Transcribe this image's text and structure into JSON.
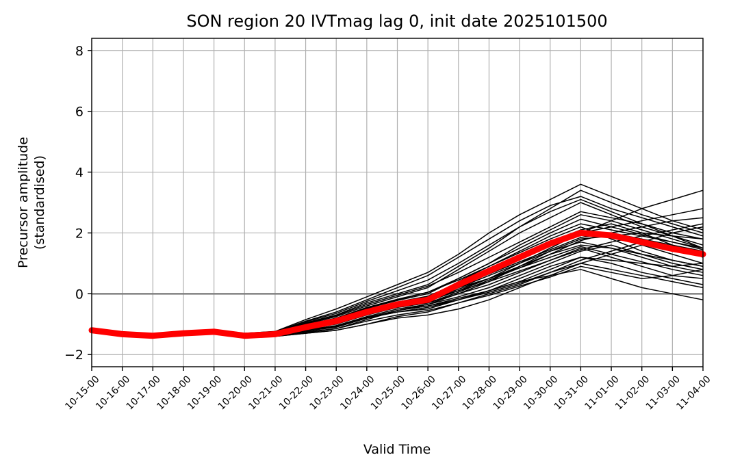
{
  "chart_data": {
    "type": "line",
    "title": "SON region 20 IVTmag lag 0, init date 2025101500",
    "xlabel": "Valid Time",
    "ylabel_lines": [
      "Precursor amplitude",
      "(standardised)"
    ],
    "categories": [
      "10-15-00",
      "10-16-00",
      "10-17-00",
      "10-18-00",
      "10-19-00",
      "10-20-00",
      "10-21-00",
      "10-22-00",
      "10-23-00",
      "10-24-00",
      "10-25-00",
      "10-26-00",
      "10-27-00",
      "10-28-00",
      "10-29-00",
      "10-30-00",
      "10-31-00",
      "11-01-00",
      "11-02-00",
      "11-03-00",
      "11-04-00"
    ],
    "yticks": [
      -2,
      0,
      2,
      4,
      6,
      8
    ],
    "ytick_labels": [
      "−2",
      "0",
      "2",
      "4",
      "6",
      "8"
    ],
    "ylim": [
      -2.4,
      8.4
    ],
    "grid": true,
    "zero_line": 0,
    "colors": {
      "members": "#000000",
      "mean": "#ff0000",
      "grid": "#b0b0b0",
      "zero_line": "#808080"
    },
    "ensemble_mean": [
      -1.2,
      -1.33,
      -1.38,
      -1.3,
      -1.25,
      -1.38,
      -1.33,
      -1.1,
      -0.9,
      -0.6,
      -0.35,
      -0.2,
      0.3,
      0.75,
      1.2,
      1.65,
      2.0,
      1.92,
      1.7,
      1.48,
      1.3
    ],
    "members": [
      [
        -1.2,
        -1.33,
        -1.38,
        -1.3,
        -1.25,
        -1.38,
        -1.33,
        -1.1,
        -0.9,
        -0.6,
        -0.35,
        -0.2,
        0.3,
        0.75,
        1.2,
        1.65,
        2.0,
        1.92,
        1.7,
        1.48,
        1.3
      ],
      [
        -1.15,
        -1.28,
        -1.33,
        -1.25,
        -1.2,
        -1.32,
        -1.28,
        -1.0,
        -0.75,
        -0.4,
        -0.1,
        0.2,
        0.8,
        1.4,
        2.0,
        2.5,
        3.0,
        2.6,
        2.2,
        1.9,
        1.6
      ],
      [
        -1.18,
        -1.3,
        -1.36,
        -1.28,
        -1.23,
        -1.35,
        -1.3,
        -1.05,
        -0.85,
        -0.5,
        -0.3,
        -0.1,
        0.2,
        0.5,
        0.9,
        1.3,
        1.6,
        1.5,
        1.3,
        1.1,
        0.9
      ],
      [
        -1.2,
        -1.34,
        -1.4,
        -1.32,
        -1.27,
        -1.4,
        -1.36,
        -1.2,
        -1.1,
        -0.8,
        -0.6,
        -0.5,
        -0.2,
        0.1,
        0.5,
        0.9,
        1.2,
        1.0,
        0.7,
        0.5,
        0.3
      ],
      [
        -1.17,
        -1.31,
        -1.37,
        -1.29,
        -1.24,
        -1.36,
        -1.31,
        -1.08,
        -0.88,
        -0.55,
        -0.3,
        -0.15,
        0.4,
        0.9,
        1.4,
        1.9,
        2.3,
        2.1,
        1.9,
        1.7,
        1.5
      ],
      [
        -1.2,
        -1.33,
        -1.38,
        -1.3,
        -1.25,
        -1.4,
        -1.4,
        -1.3,
        -1.2,
        -1.0,
        -0.8,
        -0.7,
        -0.5,
        -0.2,
        0.2,
        0.6,
        1.0,
        0.8,
        0.6,
        0.4,
        0.2
      ],
      [
        -1.16,
        -1.3,
        -1.35,
        -1.27,
        -1.22,
        -1.33,
        -1.27,
        -0.95,
        -0.7,
        -0.3,
        0.0,
        0.3,
        0.9,
        1.5,
        2.2,
        2.8,
        3.4,
        3.0,
        2.6,
        2.3,
        2.0
      ],
      [
        -1.2,
        -1.34,
        -1.4,
        -1.32,
        -1.28,
        -1.42,
        -1.38,
        -1.25,
        -1.15,
        -0.85,
        -0.55,
        -0.35,
        0.0,
        0.4,
        0.9,
        1.4,
        1.8,
        1.9,
        2.0,
        1.9,
        1.8
      ],
      [
        -1.18,
        -1.32,
        -1.37,
        -1.3,
        -1.25,
        -1.37,
        -1.32,
        -1.12,
        -0.95,
        -0.65,
        -0.4,
        -0.25,
        0.1,
        0.5,
        1.0,
        1.5,
        2.0,
        2.2,
        2.4,
        2.6,
        2.8
      ],
      [
        -1.2,
        -1.33,
        -1.39,
        -1.31,
        -1.26,
        -1.39,
        -1.35,
        -1.15,
        -1.0,
        -0.7,
        -0.45,
        -0.3,
        0.0,
        0.3,
        0.7,
        1.1,
        1.5,
        1.2,
        0.9,
        0.6,
        0.5
      ],
      [
        -1.15,
        -1.28,
        -1.33,
        -1.24,
        -1.2,
        -1.3,
        -1.25,
        -0.9,
        -0.6,
        -0.2,
        0.2,
        0.6,
        1.2,
        1.8,
        2.4,
        2.9,
        3.2,
        2.8,
        2.5,
        2.2,
        1.9
      ],
      [
        -1.19,
        -1.32,
        -1.38,
        -1.3,
        -1.25,
        -1.38,
        -1.34,
        -1.2,
        -1.05,
        -0.75,
        -0.5,
        -0.35,
        -0.1,
        0.2,
        0.6,
        1.0,
        1.4,
        1.6,
        1.3,
        1.0,
        0.8
      ],
      [
        -1.21,
        -1.35,
        -1.41,
        -1.33,
        -1.28,
        -1.42,
        -1.4,
        -1.3,
        -1.2,
        -1.0,
        -0.75,
        -0.6,
        -0.3,
        0.0,
        0.3,
        0.7,
        1.1,
        1.4,
        1.7,
        2.0,
        2.2
      ],
      [
        -1.17,
        -1.3,
        -1.36,
        -1.28,
        -1.23,
        -1.35,
        -1.3,
        -1.05,
        -0.8,
        -0.45,
        -0.2,
        0.05,
        0.5,
        1.0,
        1.6,
        2.1,
        2.6,
        2.4,
        2.1,
        1.8,
        1.5
      ],
      [
        -1.2,
        -1.33,
        -1.38,
        -1.3,
        -1.25,
        -1.38,
        -1.33,
        -1.1,
        -0.95,
        -0.65,
        -0.4,
        -0.2,
        0.2,
        0.6,
        1.0,
        1.4,
        1.7,
        1.5,
        1.2,
        0.9,
        0.7
      ],
      [
        -1.19,
        -1.33,
        -1.39,
        -1.31,
        -1.26,
        -1.39,
        -1.35,
        -1.18,
        -1.05,
        -0.78,
        -0.55,
        -0.4,
        -0.15,
        0.1,
        0.4,
        0.8,
        1.2,
        1.1,
        1.0,
        0.9,
        1.0
      ],
      [
        -1.14,
        -1.28,
        -1.32,
        -1.24,
        -1.18,
        -1.3,
        -1.24,
        -0.85,
        -0.5,
        -0.1,
        0.3,
        0.7,
        1.3,
        2.0,
        2.6,
        3.1,
        3.6,
        3.2,
        2.8,
        2.4,
        2.1
      ],
      [
        -1.2,
        -1.34,
        -1.4,
        -1.32,
        -1.27,
        -1.41,
        -1.38,
        -1.22,
        -1.1,
        -0.8,
        -0.55,
        -0.4,
        -0.2,
        0.1,
        0.4,
        0.6,
        0.8,
        0.5,
        0.2,
        0.0,
        -0.2
      ],
      [
        -1.18,
        -1.31,
        -1.36,
        -1.28,
        -1.24,
        -1.36,
        -1.31,
        -1.06,
        -0.86,
        -0.52,
        -0.27,
        -0.08,
        0.35,
        0.8,
        1.25,
        1.7,
        2.1,
        2.3,
        2.0,
        1.6,
        1.2
      ],
      [
        -1.2,
        -1.33,
        -1.38,
        -1.3,
        -1.25,
        -1.38,
        -1.33,
        -1.12,
        -0.92,
        -0.62,
        -0.38,
        -0.22,
        0.25,
        0.65,
        1.05,
        1.45,
        1.85,
        2.0,
        2.2,
        2.4,
        2.5
      ],
      [
        -1.16,
        -1.29,
        -1.34,
        -1.26,
        -1.21,
        -1.33,
        -1.27,
        -0.98,
        -0.72,
        -0.35,
        -0.05,
        0.25,
        0.7,
        1.2,
        1.7,
        2.2,
        2.7,
        2.5,
        2.3,
        2.0,
        1.8
      ],
      [
        -1.21,
        -1.35,
        -1.41,
        -1.33,
        -1.29,
        -1.43,
        -1.4,
        -1.28,
        -1.15,
        -0.9,
        -0.7,
        -0.55,
        -0.3,
        -0.05,
        0.25,
        0.55,
        0.9,
        0.7,
        0.5,
        0.6,
        0.8
      ],
      [
        -1.17,
        -1.31,
        -1.36,
        -1.28,
        -1.23,
        -1.35,
        -1.29,
        -1.02,
        -0.8,
        -0.45,
        -0.18,
        0.05,
        0.45,
        0.9,
        1.35,
        1.8,
        2.2,
        1.8,
        1.4,
        1.1,
        0.9
      ],
      [
        -1.2,
        -1.33,
        -1.38,
        -1.3,
        -1.25,
        -1.38,
        -1.33,
        -1.1,
        -0.9,
        -0.6,
        -0.35,
        -0.2,
        0.3,
        0.75,
        1.2,
        1.65,
        2.0,
        2.4,
        2.8,
        3.1,
        3.4
      ],
      [
        -1.19,
        -1.32,
        -1.37,
        -1.29,
        -1.24,
        -1.37,
        -1.32,
        -1.09,
        -0.89,
        -0.59,
        -0.34,
        -0.19,
        0.1,
        0.4,
        0.75,
        1.1,
        1.45,
        1.7,
        1.9,
        2.1,
        2.3
      ],
      [
        -1.15,
        -1.28,
        -1.33,
        -1.25,
        -1.2,
        -1.31,
        -1.26,
        -0.92,
        -0.65,
        -0.25,
        0.1,
        0.45,
        1.0,
        1.6,
        2.2,
        2.7,
        3.1,
        2.7,
        2.3,
        1.9,
        1.5
      ],
      [
        -1.2,
        -1.34,
        -1.39,
        -1.31,
        -1.26,
        -1.4,
        -1.37,
        -1.2,
        -1.08,
        -0.8,
        -0.6,
        -0.45,
        -0.2,
        0.05,
        0.35,
        0.7,
        1.0,
        1.3,
        1.6,
        1.3,
        1.0
      ],
      [
        -1.18,
        -1.31,
        -1.36,
        -1.28,
        -1.23,
        -1.35,
        -1.3,
        -1.04,
        -0.82,
        -0.48,
        -0.22,
        0.0,
        0.5,
        1.0,
        1.5,
        2.0,
        2.45,
        2.2,
        1.95,
        1.7,
        1.45
      ],
      [
        -1.2,
        -1.33,
        -1.38,
        -1.3,
        -1.25,
        -1.38,
        -1.33,
        -1.1,
        -0.9,
        -0.6,
        -0.35,
        -0.2,
        0.15,
        0.5,
        0.85,
        1.2,
        1.55,
        1.3,
        1.05,
        0.8,
        0.6
      ],
      [
        -1.19,
        -1.33,
        -1.38,
        -1.3,
        -1.26,
        -1.39,
        -1.34,
        -1.14,
        -0.97,
        -0.68,
        -0.45,
        -0.3,
        0.05,
        0.45,
        0.85,
        1.3,
        1.75,
        2.0,
        1.8,
        1.6,
        1.4
      ]
    ]
  }
}
